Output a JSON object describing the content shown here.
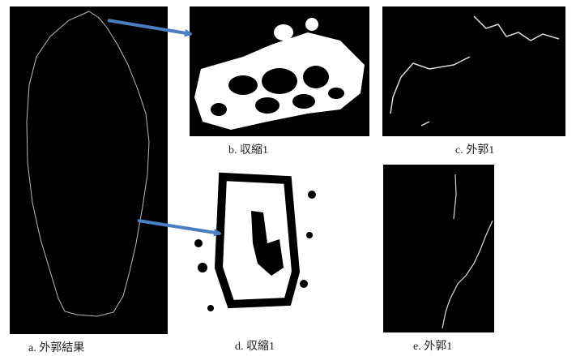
{
  "figure": {
    "panels": [
      {
        "caption": "a. 外郭結果"
      },
      {
        "caption": "b. 収縮1"
      },
      {
        "caption": "c. 外郭1"
      },
      {
        "caption": "d. 収縮1"
      },
      {
        "caption": "e. 外郭1"
      }
    ]
  }
}
